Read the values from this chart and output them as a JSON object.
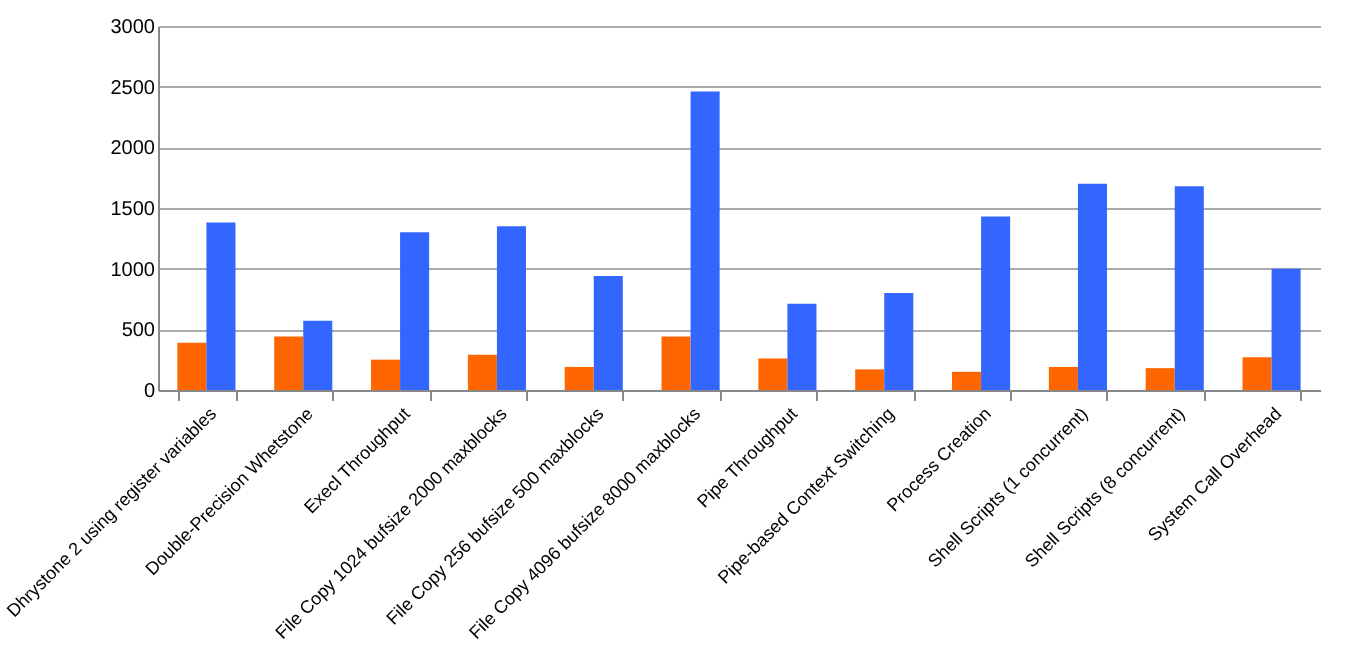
{
  "chart_data": {
    "type": "bar",
    "categories": [
      "Dhrystone 2 using register variables",
      "Double-Precision Whetstone",
      "Execl Throughput",
      "File Copy 1024 bufsize 2000 maxblocks",
      "File Copy 256 bufsize 500 maxblocks",
      "File Copy 4096 bufsize 8000 maxblocks",
      "Pipe Throughput",
      "Pipe-based Context Switching",
      "Process Creation",
      "Shell Scripts (1 concurrent)",
      "Shell Scripts (8 concurrent)",
      "System Call Overhead"
    ],
    "series": [
      {
        "color": "#ff6600",
        "values": [
          390,
          440,
          250,
          290,
          190,
          440,
          260,
          170,
          150,
          190,
          180,
          270
        ]
      },
      {
        "color": "#3366ff",
        "values": [
          1380,
          570,
          1300,
          1350,
          940,
          2460,
          710,
          800,
          1430,
          1700,
          1680,
          1000
        ]
      }
    ],
    "ylim": [
      0,
      3000
    ],
    "yticks": [
      0,
      500,
      1000,
      1500,
      2000,
      2500,
      3000
    ],
    "grid": "y"
  }
}
